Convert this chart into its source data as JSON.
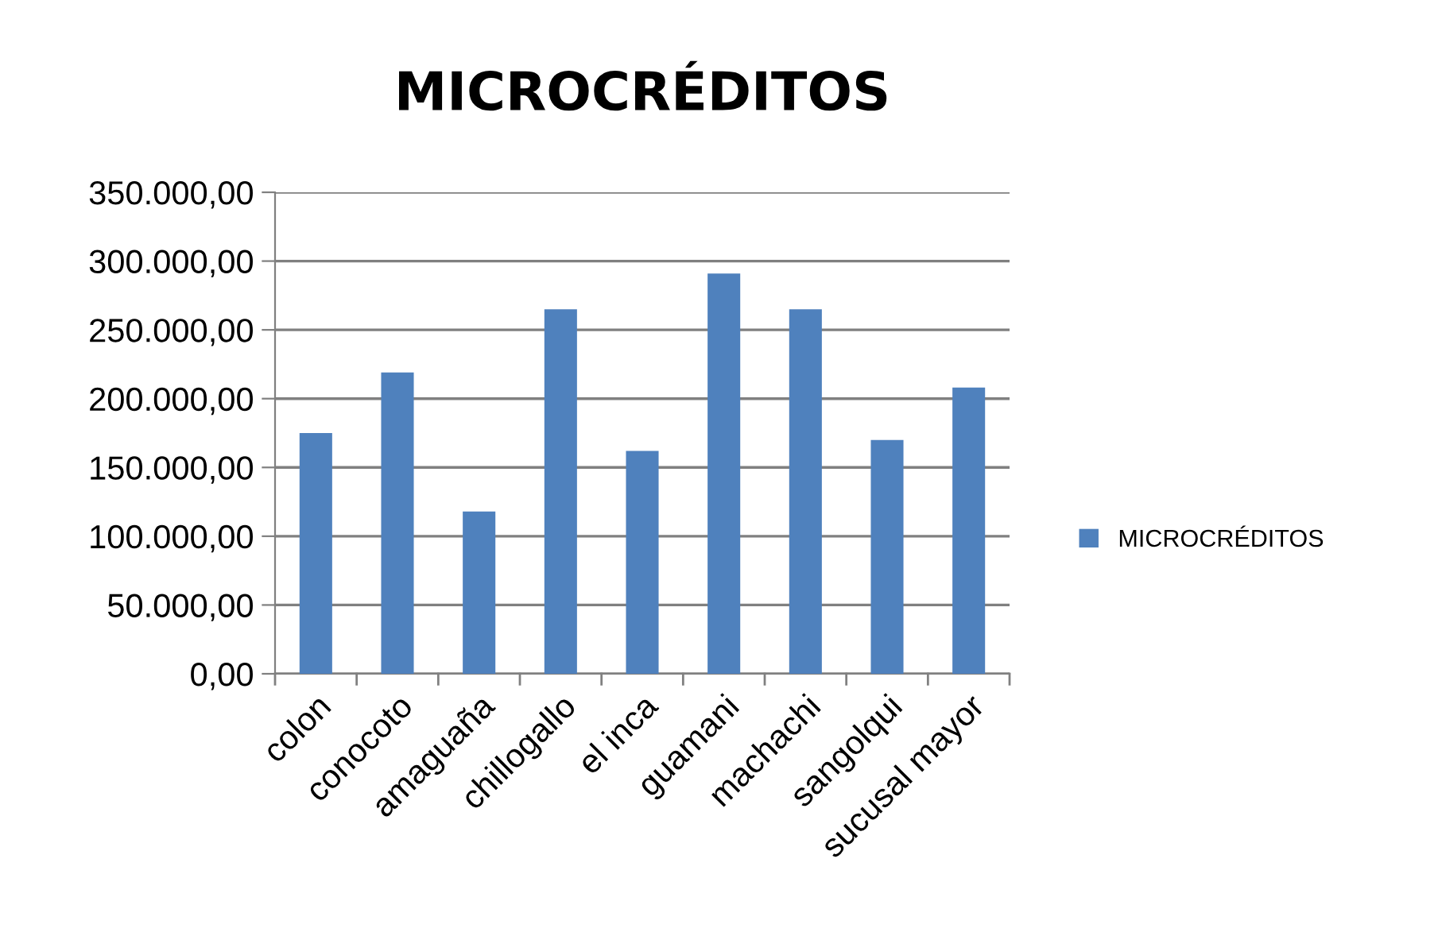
{
  "chart_data": {
    "type": "bar",
    "title": "MICROCRÉDITOS",
    "categories": [
      "colon",
      "conocoto",
      "amaguaña",
      "chillogallo",
      "el inca",
      "guamani",
      "machachi",
      "sangolqui",
      "sucusal mayor"
    ],
    "series": [
      {
        "name": "MICROCRÉDITOS",
        "color": "#4f81bd",
        "values": [
          175000,
          219000,
          118000,
          265000,
          162000,
          291000,
          265000,
          170000,
          208000
        ]
      }
    ],
    "ylim": [
      0,
      350000
    ],
    "yticks": [
      {
        "value": 0,
        "label": "0,00"
      },
      {
        "value": 50000,
        "label": "50.000,00"
      },
      {
        "value": 100000,
        "label": "100.000,00"
      },
      {
        "value": 150000,
        "label": "150.000,00"
      },
      {
        "value": 200000,
        "label": "200.000,00"
      },
      {
        "value": 250000,
        "label": "250.000,00"
      },
      {
        "value": 300000,
        "label": "300.000,00"
      },
      {
        "value": 350000,
        "label": "350.000,00"
      }
    ],
    "grid": "y",
    "legend": "right"
  }
}
